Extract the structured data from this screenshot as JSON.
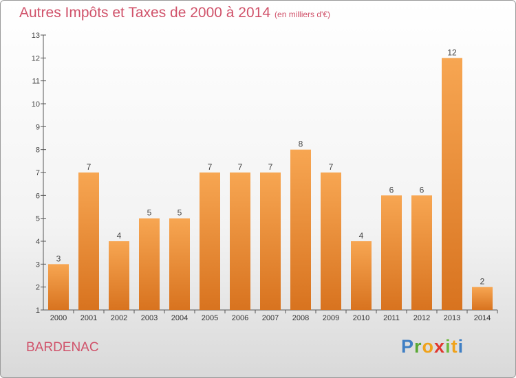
{
  "chart_data": {
    "type": "bar",
    "title": "Autres Impôts et Taxes de 2000 à 2014",
    "title_unit": "(en milliers d'€)",
    "categories": [
      "2000",
      "2001",
      "2002",
      "2003",
      "2004",
      "2005",
      "2006",
      "2007",
      "2008",
      "2009",
      "2010",
      "2011",
      "2012",
      "2013",
      "2014"
    ],
    "values": [
      3,
      7,
      4,
      5,
      5,
      7,
      7,
      7,
      8,
      7,
      4,
      6,
      6,
      12,
      2
    ],
    "ylim": [
      1,
      13
    ],
    "yticks": [
      1,
      2,
      3,
      4,
      5,
      6,
      7,
      8,
      9,
      10,
      11,
      12,
      13
    ],
    "xlabel": "",
    "ylabel": "",
    "grid": false,
    "bar_color": "#f0963c"
  },
  "footer": {
    "city": "BARDENAC",
    "logo": {
      "p": "P",
      "r": "r",
      "o": "o",
      "x": "x",
      "i1": "i",
      "t": "t",
      "i2": "i"
    }
  }
}
